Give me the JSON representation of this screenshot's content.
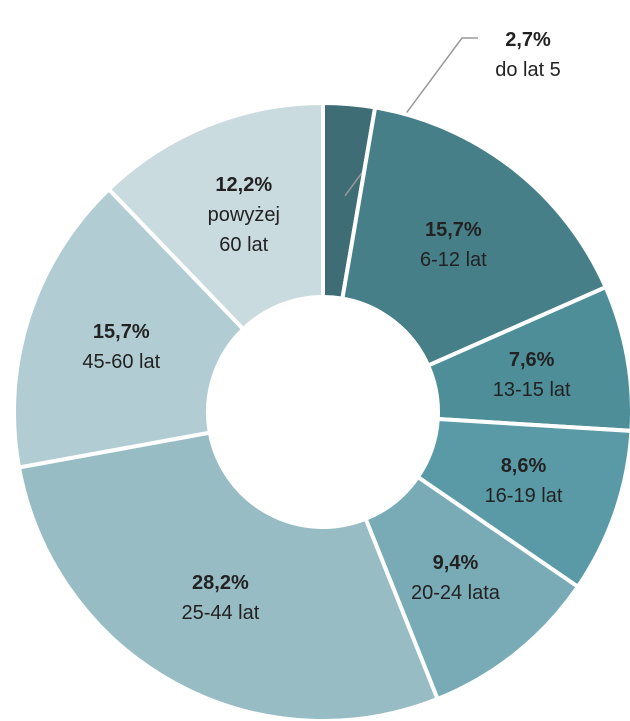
{
  "chart_data": {
    "type": "donut",
    "categories": [
      "do lat 5",
      "6-12 lat",
      "13-15 lat",
      "16-19 lat",
      "20-24 lata",
      "25-44 lat",
      "45-60 lat",
      "powyżej\n60 lat"
    ],
    "values": [
      2.7,
      15.7,
      7.6,
      8.6,
      9.4,
      28.2,
      15.7,
      12.2
    ],
    "value_labels": [
      "2,7%",
      "15,7%",
      "7,6%",
      "8,6%",
      "9,4%",
      "28,2%",
      "15,7%",
      "12,2%"
    ],
    "colors": [
      "#3e6d76",
      "#467f88",
      "#4e8e98",
      "#5a9aa6",
      "#78abb5",
      "#97bcc4",
      "#b1cdd3",
      "#cadbe0"
    ]
  }
}
